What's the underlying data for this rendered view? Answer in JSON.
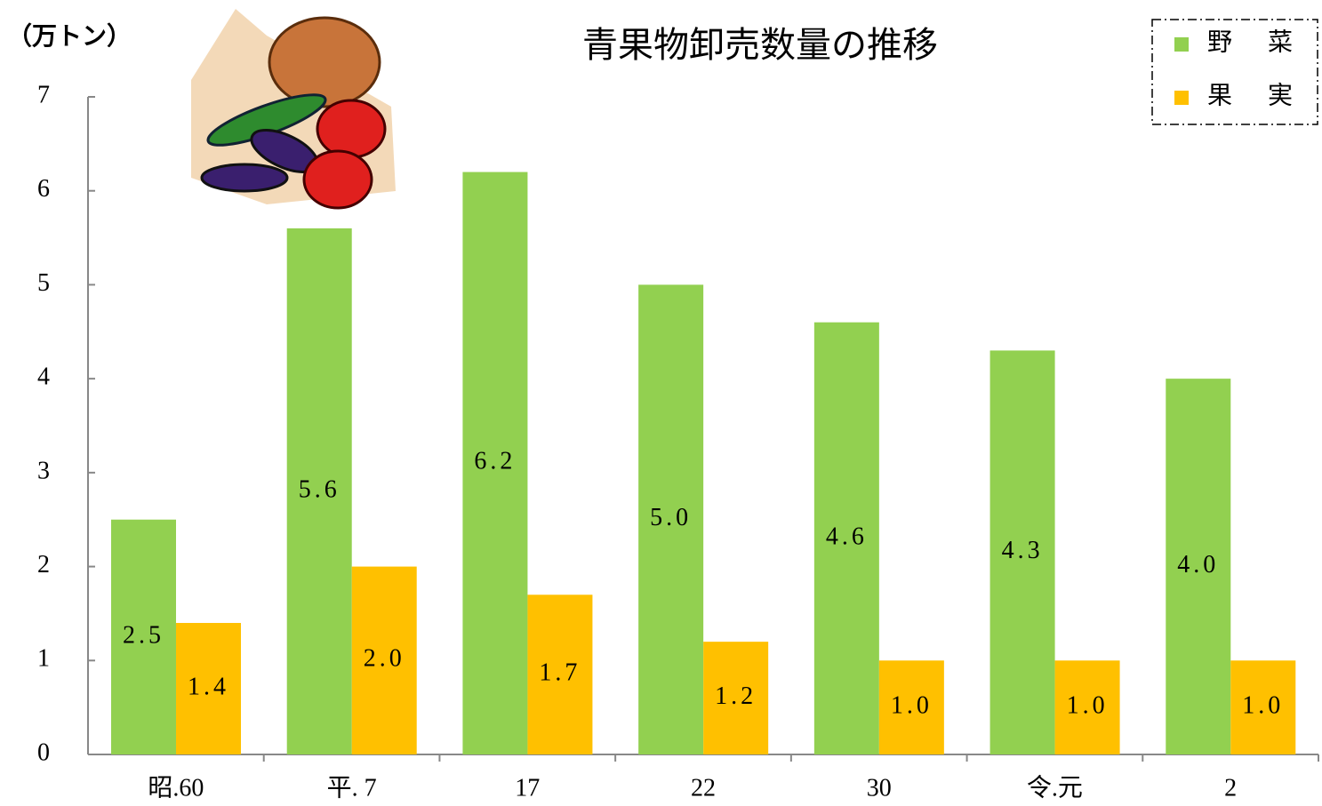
{
  "chart_data": {
    "type": "bar",
    "title": "青果物卸売数量の推移",
    "y_axis_label": "（万トン）",
    "categories": [
      "昭.60",
      "平. 7",
      "17",
      "22",
      "30",
      "令.元",
      "2"
    ],
    "series": [
      {
        "name": "野　菜",
        "color": "#92d050",
        "values": [
          2.5,
          5.6,
          6.2,
          5.0,
          4.6,
          4.3,
          4.0
        ],
        "value_labels": [
          "2.5",
          "5.6",
          "6.2",
          "5.0",
          "4.6",
          "4.3",
          "4.0"
        ]
      },
      {
        "name": "果　実",
        "color": "#ffc000",
        "values": [
          1.4,
          2.0,
          1.7,
          1.2,
          1.0,
          1.0,
          1.0
        ],
        "value_labels": [
          "1.4",
          "2.0",
          "1.7",
          "1.2",
          "1.0",
          "1.0",
          "1.0"
        ]
      }
    ],
    "ylim": [
      0,
      7
    ],
    "yticks": [
      0,
      1,
      2,
      3,
      4,
      5,
      6,
      7
    ],
    "grid": false,
    "legend": "upper right"
  }
}
